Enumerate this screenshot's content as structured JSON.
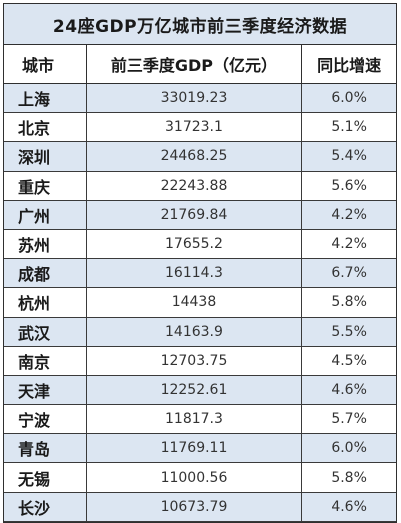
{
  "title": "24座GDP万亿城市前三季度经济数据",
  "headers": [
    "城市",
    "前三季度GDP（亿元）",
    "同比增速"
  ],
  "rows": [
    {
      "city": "上海",
      "gdp": "33019.23",
      "growth": "6.0%"
    },
    {
      "city": "北京",
      "gdp": "31723.1",
      "growth": "5.1%"
    },
    {
      "city": "深圳",
      "gdp": "24468.25",
      "growth": "5.4%"
    },
    {
      "city": "重庆",
      "gdp": "22243.88",
      "growth": "5.6%"
    },
    {
      "city": "广州",
      "gdp": "21769.84",
      "growth": "4.2%"
    },
    {
      "city": "苏州",
      "gdp": "17655.2",
      "growth": "4.2%"
    },
    {
      "city": "成都",
      "gdp": "16114.3",
      "growth": "6.7%"
    },
    {
      "city": "杭州",
      "gdp": "14438",
      "growth": "5.8%"
    },
    {
      "city": "武汉",
      "gdp": "14163.9",
      "growth": "5.5%"
    },
    {
      "city": "南京",
      "gdp": "12703.75",
      "growth": "4.5%"
    },
    {
      "city": "天津",
      "gdp": "12252.61",
      "growth": "4.6%"
    },
    {
      "city": "宁波",
      "gdp": "11817.3",
      "growth": "5.7%"
    },
    {
      "city": "青岛",
      "gdp": "11769.11",
      "growth": "6.0%"
    },
    {
      "city": "无锡",
      "gdp": "11000.56",
      "growth": "5.8%"
    },
    {
      "city": "长沙",
      "gdp": "10673.79",
      "growth": "4.6%"
    }
  ],
  "colors": {
    "title_bg": "#dbe5f1",
    "stripe_bg": "#dce6f2",
    "border": "#2f2f2f"
  }
}
